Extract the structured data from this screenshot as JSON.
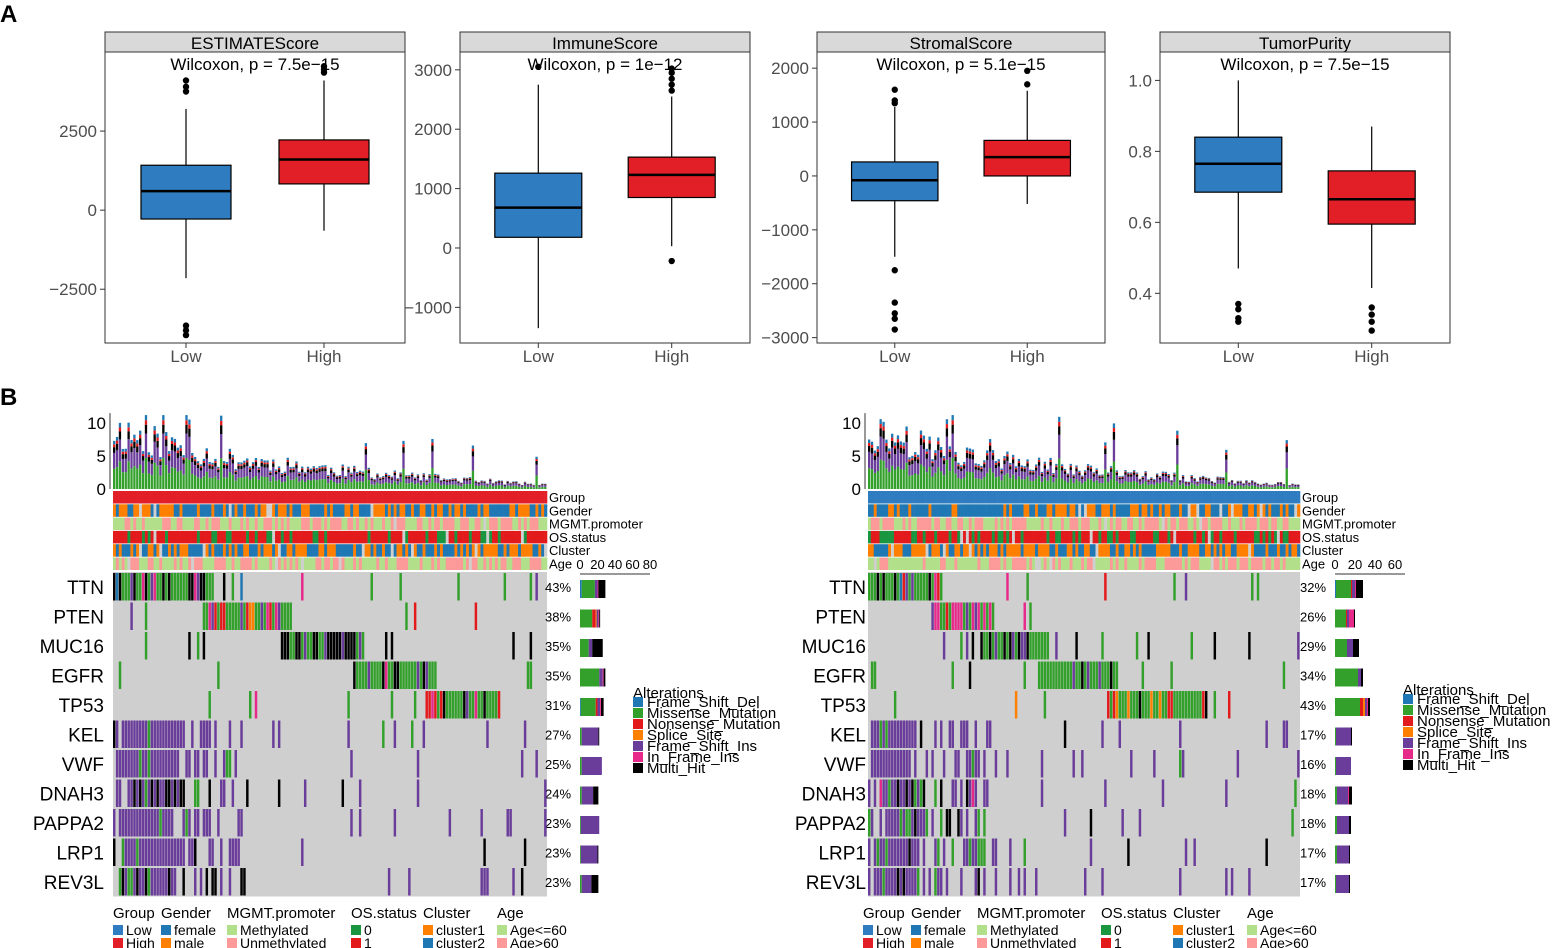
{
  "panels": {
    "a": "A",
    "b": "B"
  },
  "chart_data": [
    {
      "type": "box",
      "title": "ESTIMATEScore",
      "annotation": "Wilcoxon, p = 7.5e−15",
      "categories": [
        "Low",
        "High"
      ],
      "ylim": [
        -4200,
        5000
      ],
      "ticks": [
        {
          "v": 2500,
          "label": "2500"
        },
        {
          "v": 0,
          "label": "0"
        },
        {
          "v": -2500,
          "label": "−2500"
        }
      ],
      "groups": [
        {
          "name": "Low",
          "color": "#2f7cc0",
          "q1": -280,
          "median": 600,
          "q3": 1420,
          "whisker_low": -2150,
          "whisker_high": 3200,
          "outliers": [
            4100,
            3900,
            3750,
            -3650,
            -3800,
            -3950
          ]
        },
        {
          "name": "High",
          "color": "#e21f26",
          "q1": 830,
          "median": 1600,
          "q3": 2220,
          "whisker_low": -650,
          "whisker_high": 4100,
          "outliers": [
            4450,
            4350,
            4550
          ]
        }
      ]
    },
    {
      "type": "box",
      "title": "ImmuneScore",
      "annotation": "Wilcoxon, p = 1e−12",
      "categories": [
        "Low",
        "High"
      ],
      "ylim": [
        -1600,
        3300
      ],
      "ticks": [
        {
          "v": 3000,
          "label": "3000"
        },
        {
          "v": 2000,
          "label": "2000"
        },
        {
          "v": 1000,
          "label": "1000"
        },
        {
          "v": 0,
          "label": "0"
        },
        {
          "v": -1000,
          "label": "−1000"
        }
      ],
      "groups": [
        {
          "name": "Low",
          "color": "#2f7cc0",
          "q1": 180,
          "median": 680,
          "q3": 1260,
          "whisker_low": -1350,
          "whisker_high": 2750,
          "outliers": [
            3050
          ]
        },
        {
          "name": "High",
          "color": "#e21f26",
          "q1": 850,
          "median": 1230,
          "q3": 1530,
          "whisker_low": 30,
          "whisker_high": 2550,
          "outliers": [
            2650,
            2750,
            2850,
            2950,
            3020,
            -220
          ]
        }
      ]
    },
    {
      "type": "box",
      "title": "StromalScore",
      "annotation": "Wilcoxon, p = 5.1e−15",
      "categories": [
        "Low",
        "High"
      ],
      "ylim": [
        -3100,
        2300
      ],
      "ticks": [
        {
          "v": 2000,
          "label": "2000"
        },
        {
          "v": 1000,
          "label": "1000"
        },
        {
          "v": 0,
          "label": "0"
        },
        {
          "v": -1000,
          "label": "−1000"
        },
        {
          "v": -2000,
          "label": "−2000"
        },
        {
          "v": -3000,
          "label": "−3000"
        }
      ],
      "groups": [
        {
          "name": "Low",
          "color": "#2f7cc0",
          "q1": -460,
          "median": -80,
          "q3": 260,
          "whisker_low": -1500,
          "whisker_high": 1280,
          "outliers": [
            1600,
            1400,
            1350,
            -1750,
            -2350,
            -2550,
            -2650,
            -2850
          ]
        },
        {
          "name": "High",
          "color": "#e21f26",
          "q1": 0,
          "median": 350,
          "q3": 660,
          "whisker_low": -520,
          "whisker_high": 1580,
          "outliers": [
            1700,
            1950
          ]
        }
      ]
    },
    {
      "type": "box",
      "title": "TumorPurity",
      "annotation": "Wilcoxon, p = 7.5e−15",
      "categories": [
        "Low",
        "High"
      ],
      "ylim": [
        0.26,
        1.08
      ],
      "ticks": [
        {
          "v": 1.0,
          "label": "1.0"
        },
        {
          "v": 0.8,
          "label": "0.8"
        },
        {
          "v": 0.6,
          "label": "0.6"
        },
        {
          "v": 0.4,
          "label": "0.4"
        }
      ],
      "groups": [
        {
          "name": "Low",
          "color": "#2f7cc0",
          "q1": 0.685,
          "median": 0.765,
          "q3": 0.84,
          "whisker_low": 0.47,
          "whisker_high": 1.0,
          "outliers": [
            0.37,
            0.355,
            0.33,
            0.32
          ]
        },
        {
          "name": "High",
          "color": "#e21f26",
          "q1": 0.595,
          "median": 0.665,
          "q3": 0.745,
          "whisker_low": 0.415,
          "whisker_high": 0.87,
          "outliers": [
            0.36,
            0.34,
            0.32,
            0.295
          ]
        }
      ]
    },
    {
      "type": "oncoplot",
      "name": "High group",
      "tmb_ticks": [
        {
          "v": 10,
          "label": "10"
        },
        {
          "v": 5,
          "label": "5"
        },
        {
          "v": 0,
          "label": "0"
        }
      ],
      "tracks": [
        "Group",
        "Gender",
        "MGMT.promoter",
        "OS.status",
        "Cluster",
        "Age"
      ],
      "bar_ticks": [
        "0",
        "20",
        "40",
        "60",
        "80"
      ],
      "bar_max": 80,
      "genes": [
        {
          "gene": "TTN",
          "pct": "43%",
          "counts": [
            2,
            15,
            0,
            0,
            3,
            1,
            8
          ]
        },
        {
          "gene": "PTEN",
          "pct": "38%",
          "counts": [
            0,
            14,
            4,
            1,
            2,
            1,
            1
          ]
        },
        {
          "gene": "MUC16",
          "pct": "35%",
          "counts": [
            0,
            10,
            0,
            0,
            4,
            0,
            12
          ]
        },
        {
          "gene": "EGFR",
          "pct": "35%",
          "counts": [
            0,
            22,
            0,
            0,
            4,
            1,
            2
          ]
        },
        {
          "gene": "TP53",
          "pct": "31%",
          "counts": [
            1,
            17,
            2,
            0,
            3,
            1,
            3
          ]
        },
        {
          "gene": "KEL",
          "pct": "27%",
          "counts": [
            0,
            2,
            0,
            0,
            19,
            0,
            1
          ]
        },
        {
          "gene": "VWF",
          "pct": "25%",
          "counts": [
            0,
            2,
            0,
            0,
            23,
            0,
            0
          ]
        },
        {
          "gene": "DNAH3",
          "pct": "24%",
          "counts": [
            0,
            2,
            0,
            0,
            13,
            0,
            6
          ]
        },
        {
          "gene": "PAPPA2",
          "pct": "23%",
          "counts": [
            0,
            1,
            0,
            0,
            21,
            0,
            0
          ]
        },
        {
          "gene": "LRP1",
          "pct": "23%",
          "counts": [
            0,
            1,
            0,
            0,
            19,
            0,
            1
          ]
        },
        {
          "gene": "REV3L",
          "pct": "23%",
          "counts": [
            0,
            2,
            0,
            0,
            11,
            0,
            8
          ]
        }
      ]
    },
    {
      "type": "oncoplot",
      "name": "Low group",
      "tmb_ticks": [
        {
          "v": 10,
          "label": "10"
        },
        {
          "v": 5,
          "label": "5"
        },
        {
          "v": 0,
          "label": "0"
        }
      ],
      "tracks": [
        "Group",
        "Gender",
        "MGMT.promoter",
        "OS.status",
        "Cluster",
        "Age"
      ],
      "bar_ticks": [
        "0",
        "20",
        "40",
        "60"
      ],
      "bar_max": 70,
      "genes": [
        {
          "gene": "TTN",
          "pct": "32%",
          "counts": [
            1,
            15,
            1,
            0,
            3,
            1,
            7
          ]
        },
        {
          "gene": "PTEN",
          "pct": "26%",
          "counts": [
            0,
            11,
            1,
            0,
            2,
            5,
            1
          ]
        },
        {
          "gene": "MUC16",
          "pct": "29%",
          "counts": [
            0,
            12,
            0,
            0,
            6,
            0,
            6
          ]
        },
        {
          "gene": "EGFR",
          "pct": "34%",
          "counts": [
            0,
            23,
            0,
            0,
            3,
            0,
            2
          ]
        },
        {
          "gene": "TP53",
          "pct": "43%",
          "counts": [
            0,
            25,
            3,
            2,
            2,
            1,
            2
          ]
        },
        {
          "gene": "KEL",
          "pct": "17%",
          "counts": [
            0,
            1,
            0,
            0,
            15,
            0,
            1
          ]
        },
        {
          "gene": "VWF",
          "pct": "16%",
          "counts": [
            0,
            1,
            0,
            0,
            15,
            0,
            0
          ]
        },
        {
          "gene": "DNAH3",
          "pct": "18%",
          "counts": [
            0,
            2,
            0,
            0,
            11,
            1,
            3
          ]
        },
        {
          "gene": "PAPPA2",
          "pct": "18%",
          "counts": [
            0,
            2,
            0,
            0,
            12,
            0,
            2
          ]
        },
        {
          "gene": "LRP1",
          "pct": "17%",
          "counts": [
            0,
            2,
            0,
            0,
            12,
            0,
            1
          ]
        },
        {
          "gene": "REV3L",
          "pct": "17%",
          "counts": [
            0,
            1,
            0,
            0,
            13,
            0,
            1
          ]
        }
      ]
    }
  ],
  "alterations": {
    "title": "Alterations",
    "items": [
      {
        "label": "Frame_Shift_Del",
        "color": "#1f78b4"
      },
      {
        "label": "Missense_Mutation",
        "color": "#33a02c"
      },
      {
        "label": "Nonsense_Mutation",
        "color": "#e31a1c"
      },
      {
        "label": "Splice_Site",
        "color": "#ff7f00"
      },
      {
        "label": "Frame_Shift_Ins",
        "color": "#6a3d9a"
      },
      {
        "label": "In_Frame_Ins",
        "color": "#e7298a"
      },
      {
        "label": "Multi_Hit",
        "color": "#000000"
      }
    ]
  },
  "annotation_legend": [
    {
      "title": "Group",
      "items": [
        {
          "label": "Low",
          "color": "#2f7cc0"
        },
        {
          "label": "High",
          "color": "#e21f26"
        }
      ]
    },
    {
      "title": "Gender",
      "items": [
        {
          "label": "female",
          "color": "#1f78b4"
        },
        {
          "label": "male",
          "color": "#ff7f00"
        }
      ]
    },
    {
      "title": "MGMT.promoter",
      "items": [
        {
          "label": "Methylated",
          "color": "#b2df8a"
        },
        {
          "label": "Unmethylated",
          "color": "#fb9a99"
        }
      ]
    },
    {
      "title": "OS.status",
      "items": [
        {
          "label": "0",
          "color": "#1a9641"
        },
        {
          "label": "1",
          "color": "#e31a1c"
        }
      ]
    },
    {
      "title": "Cluster",
      "items": [
        {
          "label": "cluster1",
          "color": "#ff7f00"
        },
        {
          "label": "cluster2",
          "color": "#1f78b4"
        }
      ]
    },
    {
      "title": "Age",
      "items": [
        {
          "label": "Age<=60",
          "color": "#b2df8a"
        },
        {
          "label": "Age>60",
          "color": "#fb9a99"
        }
      ]
    }
  ],
  "colors": {
    "strip": "#d9d9d9",
    "cell_bg": "#cfcfcf",
    "low": "#2f7cc0",
    "high": "#e21f26"
  }
}
